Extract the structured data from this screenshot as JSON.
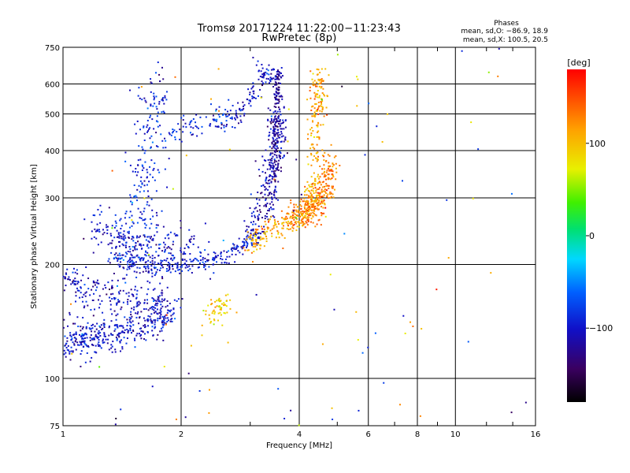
{
  "chart_data": {
    "type": "scatter",
    "title": "Tromsø 20171224 11:22:00−11:23:43",
    "subtitle": "RwPretec (8p)",
    "xlabel": "Frequency [MHz]",
    "ylabel": "Stationary phase Virtual Height [km]",
    "x_scale": "log",
    "y_scale": "log",
    "xlim": [
      1,
      16
    ],
    "ylim": [
      75,
      750
    ],
    "xticks": [
      1,
      2,
      4,
      6,
      8,
      10,
      16
    ],
    "xtick_labels": [
      "1",
      "2",
      "4",
      "6",
      "8",
      "10",
      "16"
    ],
    "xgrid": [
      2,
      4,
      6,
      8,
      10
    ],
    "xminor": [
      3,
      5,
      7,
      9,
      12,
      14
    ],
    "yticks": [
      75,
      100,
      200,
      300,
      400,
      500,
      600,
      750
    ],
    "ytick_labels": [
      "75",
      "100",
      "200",
      "300",
      "400",
      "500",
      "600",
      "750"
    ],
    "ygrid": [
      100,
      200,
      300,
      400,
      500,
      600
    ],
    "grid": true,
    "phase_legend": {
      "title": "Phases",
      "line_o": "mean, sd,O: −86.9, 18.9",
      "line_x": "mean, sd,X: 100.5, 20.5"
    },
    "colorbar": {
      "label": "[deg]",
      "range": [
        -180,
        180
      ],
      "ticks": [
        100,
        0,
        -100
      ],
      "tick_labels": [
        "100",
        "0",
        "−100"
      ],
      "colormap": "rainbow (black-purple-blue-cyan-green-yellow-red)"
    },
    "series": [
      {
        "kind": "curve",
        "freq": [
          1.0,
          1.1,
          1.2,
          1.3,
          1.45,
          1.6,
          1.75,
          1.9
        ],
        "height": [
          125,
          128,
          130,
          132,
          135,
          140,
          145,
          150
        ],
        "spread": 0.06,
        "phase_deg": -100,
        "count": 420
      },
      {
        "kind": "curve",
        "freq": [
          1.0,
          1.1,
          1.25,
          1.4,
          1.6,
          1.8
        ],
        "height": [
          190,
          175,
          168,
          165,
          162,
          162
        ],
        "spread": 0.05,
        "phase_deg": -105,
        "count": 200
      },
      {
        "kind": "curve",
        "freq": [
          1.35,
          1.5,
          1.7,
          1.9,
          2.1,
          2.4,
          2.7,
          2.95,
          3.1
        ],
        "height": [
          205,
          200,
          198,
          198,
          200,
          205,
          215,
          228,
          240
        ],
        "spread": 0.03,
        "phase_deg": -95,
        "count": 280
      },
      {
        "kind": "curve",
        "freq": [
          1.2,
          1.35,
          1.5,
          1.7,
          1.9,
          2.2
        ],
        "height": [
          255,
          240,
          230,
          225,
          222,
          222
        ],
        "spread": 0.07,
        "phase_deg": -100,
        "count": 220
      },
      {
        "kind": "curve",
        "freq": [
          1.5,
          1.55,
          1.6,
          1.65,
          1.7,
          1.75
        ],
        "height": [
          200,
          260,
          330,
          420,
          520,
          580
        ],
        "spread": 0.08,
        "phase_deg": -90,
        "count": 200
      },
      {
        "kind": "curve",
        "freq": [
          1.8,
          2.0,
          2.2,
          2.4,
          2.6,
          2.8
        ],
        "height": [
          430,
          460,
          470,
          480,
          490,
          500
        ],
        "spread": 0.04,
        "phase_deg": -90,
        "count": 100
      },
      {
        "kind": "curve",
        "freq": [
          2.8,
          3.0,
          3.15,
          3.25,
          3.35,
          3.45
        ],
        "height": [
          500,
          550,
          600,
          640,
          650,
          620
        ],
        "spread": 0.03,
        "phase_deg": -100,
        "count": 90
      },
      {
        "kind": "curve",
        "freq": [
          3.0,
          3.2,
          3.35,
          3.45,
          3.5,
          3.55
        ],
        "height": [
          240,
          270,
          310,
          360,
          430,
          520
        ],
        "spread": 0.05,
        "phase_deg": -110,
        "count": 260
      },
      {
        "kind": "curve",
        "freq": [
          3.45,
          3.48,
          3.5,
          3.52,
          3.55
        ],
        "height": [
          330,
          420,
          500,
          580,
          650
        ],
        "spread": 0.02,
        "phase_deg": -120,
        "count": 160
      },
      {
        "kind": "curve",
        "freq": [
          2.95,
          3.2,
          3.5,
          3.8,
          4.1,
          4.3,
          4.4
        ],
        "height": [
          225,
          235,
          250,
          260,
          275,
          300,
          330
        ],
        "spread": 0.04,
        "phase_deg": 110,
        "count": 240
      },
      {
        "kind": "curve",
        "freq": [
          3.8,
          4.1,
          4.35,
          4.55,
          4.7,
          4.8
        ],
        "height": [
          260,
          270,
          285,
          300,
          330,
          380
        ],
        "spread": 0.05,
        "phase_deg": 130,
        "count": 280
      },
      {
        "kind": "curve",
        "freq": [
          4.3,
          4.4,
          4.45,
          4.5,
          4.55
        ],
        "height": [
          380,
          450,
          520,
          580,
          640
        ],
        "spread": 0.04,
        "phase_deg": 115,
        "count": 140
      },
      {
        "kind": "curve",
        "freq": [
          2.35,
          2.45,
          2.55,
          2.65
        ],
        "height": [
          145,
          150,
          155,
          160
        ],
        "spread": 0.05,
        "phase_deg": 95,
        "count": 60
      },
      {
        "kind": "noise",
        "xlim": [
          1,
          16
        ],
        "ylim": [
          75,
          750
        ],
        "count": 110
      }
    ]
  }
}
